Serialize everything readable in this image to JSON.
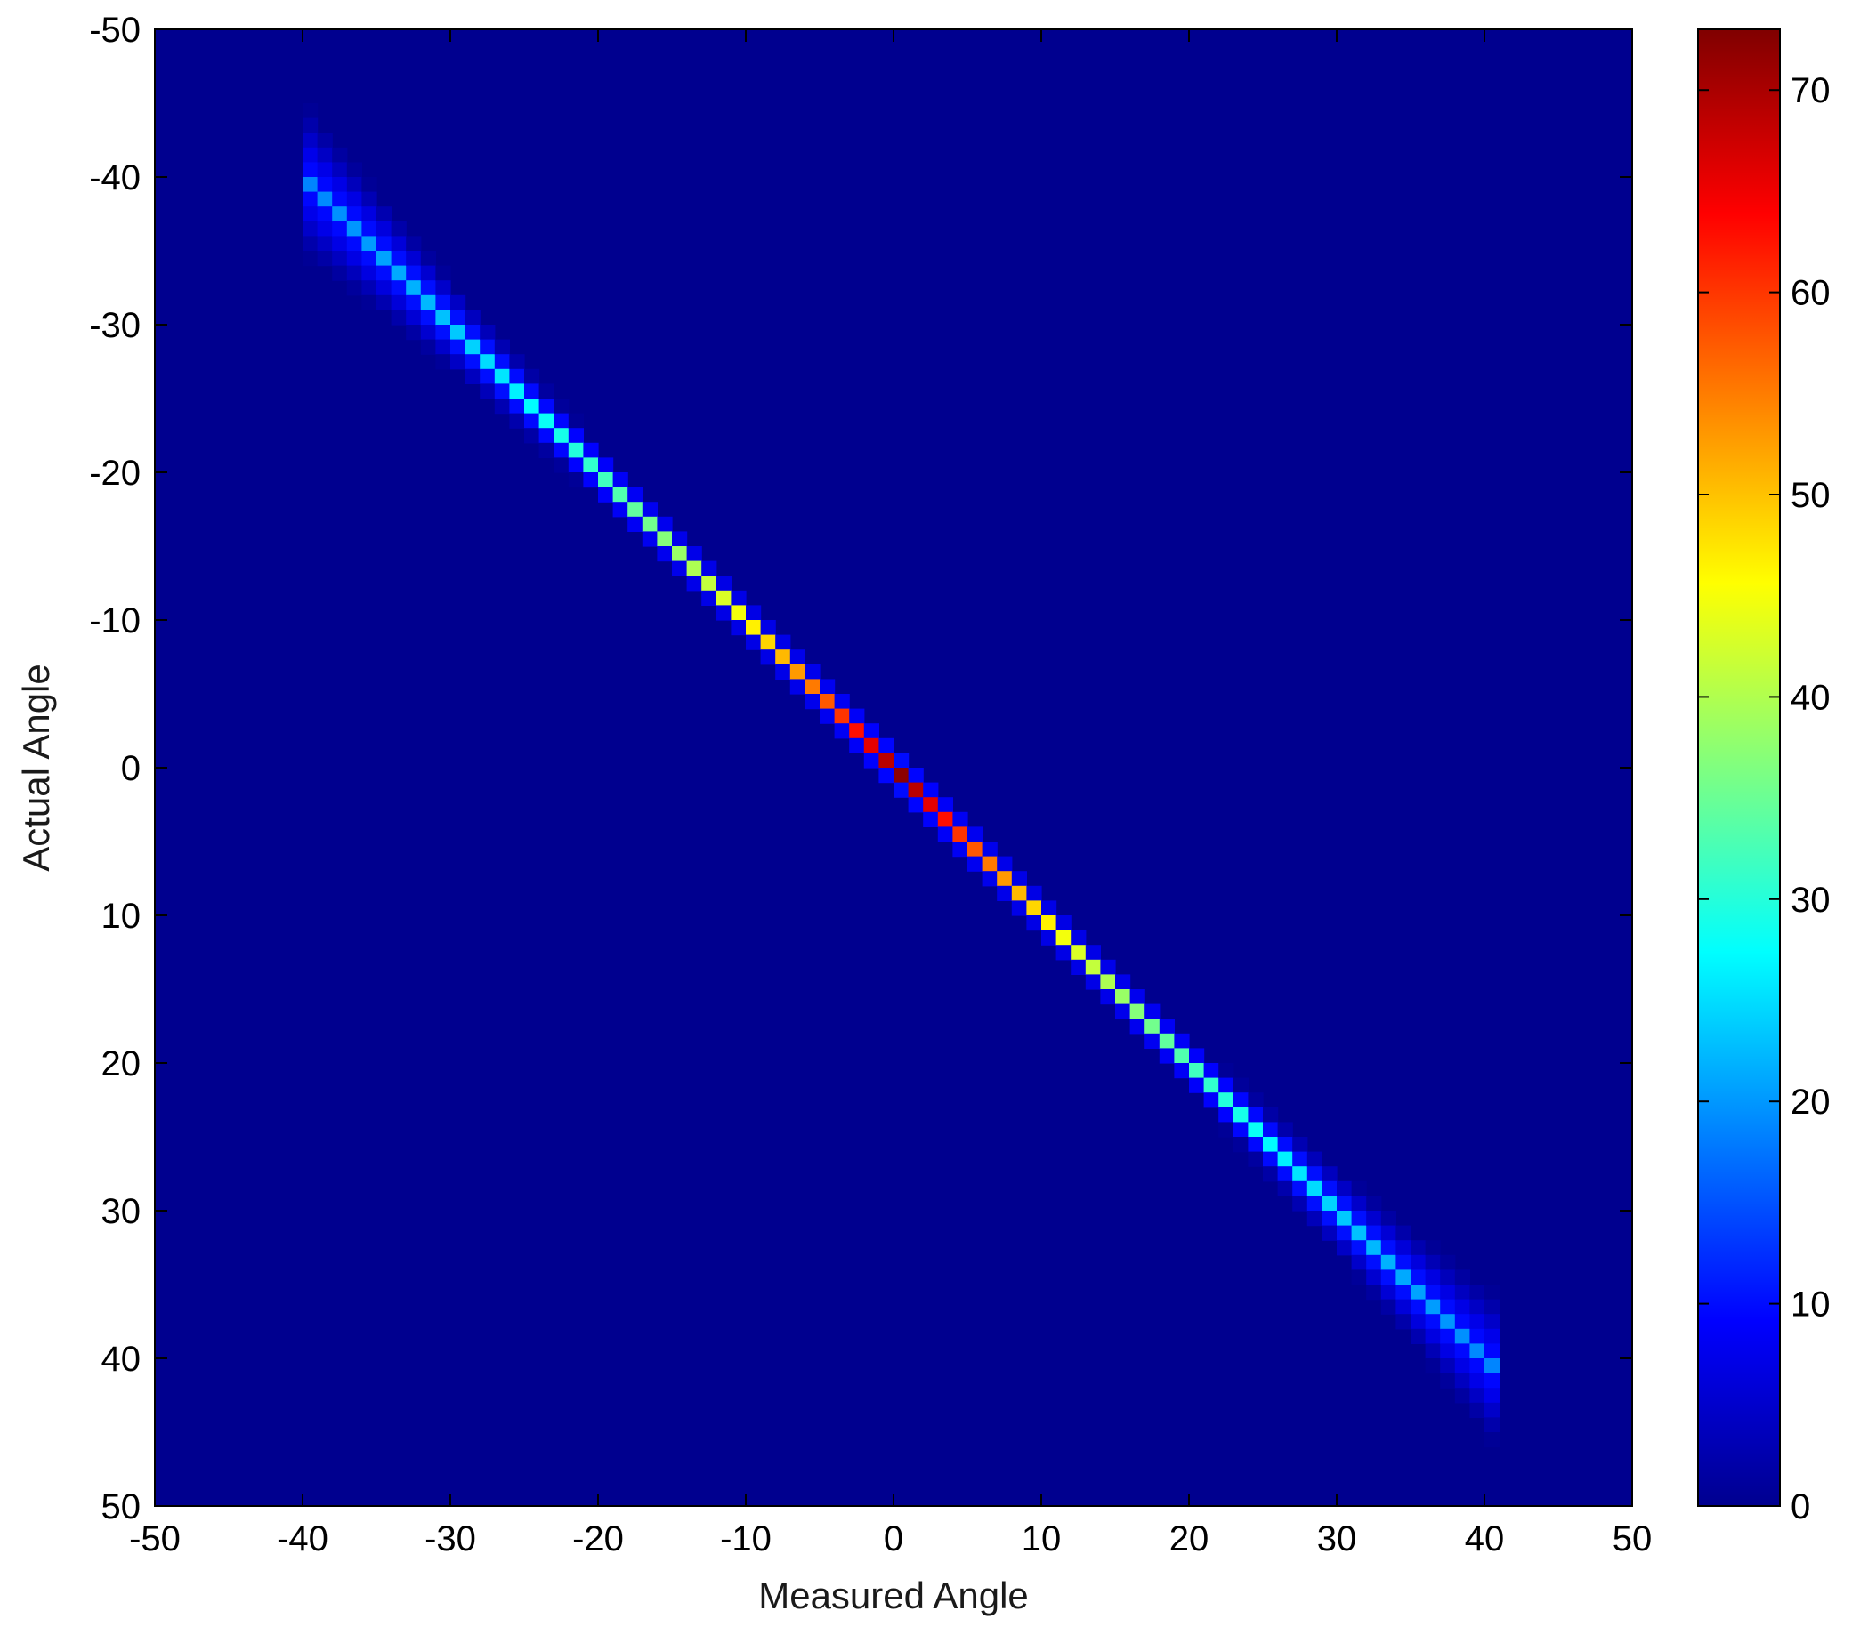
{
  "chart_data": {
    "type": "heatmap",
    "title": "",
    "xlabel": "Measured Angle",
    "ylabel": "Actual Angle",
    "x_axis": {
      "range": [
        -50,
        50
      ],
      "ticks": [
        -50,
        -40,
        -30,
        -20,
        -10,
        0,
        10,
        20,
        30,
        40,
        50
      ],
      "tick_labels": [
        "-50",
        "-40",
        "-30",
        "-20",
        "-10",
        "0",
        "10",
        "20",
        "30",
        "40",
        "50"
      ]
    },
    "y_axis": {
      "range": [
        -50,
        50
      ],
      "direction": "down",
      "ticks": [
        -50,
        -40,
        -30,
        -20,
        -10,
        0,
        10,
        20,
        30,
        40,
        50
      ],
      "tick_labels": [
        "-50",
        "-40",
        "-30",
        "-20",
        "-10",
        "0",
        "10",
        "20",
        "30",
        "40",
        "50"
      ]
    },
    "colorbar": {
      "colormap": "jet",
      "range": [
        0,
        73
      ],
      "ticks": [
        0,
        10,
        20,
        30,
        40,
        50,
        60,
        70
      ],
      "tick_labels": [
        "0",
        "10",
        "20",
        "30",
        "40",
        "50",
        "60",
        "70"
      ]
    },
    "background_color": "#00008f",
    "bin_size": 1,
    "grid": false,
    "legend": "none",
    "ridge": {
      "measured_range": [
        -40,
        40
      ],
      "relation": "actual equals measured",
      "peak_count_at_zero": 72,
      "count_at_ends": 12,
      "spread_at_ends": 2
    }
  }
}
